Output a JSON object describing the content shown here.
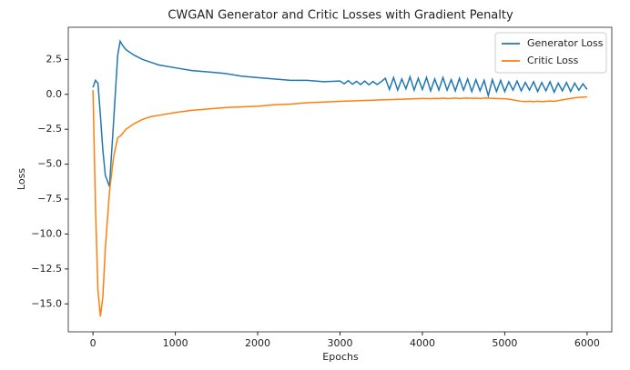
{
  "chart_data": {
    "type": "line",
    "title": "CWGAN Generator and Critic Losses with Gradient Penalty",
    "xlabel": "Epochs",
    "ylabel": "Loss",
    "x": [
      0,
      30,
      60,
      90,
      120,
      150,
      200,
      250,
      300,
      330,
      360,
      400,
      500,
      600,
      700,
      800,
      1000,
      1200,
      1400,
      1600,
      1800,
      2000,
      2200,
      2400,
      2600,
      2800,
      3000,
      3050,
      3100,
      3150,
      3200,
      3250,
      3300,
      3350,
      3400,
      3450,
      3500,
      3550,
      3600,
      3650,
      3700,
      3750,
      3800,
      3850,
      3900,
      3950,
      4000,
      4050,
      4100,
      4150,
      4200,
      4250,
      4300,
      4350,
      4400,
      4450,
      4500,
      4550,
      4600,
      4650,
      4700,
      4750,
      4800,
      4850,
      4900,
      4950,
      5000,
      5050,
      5100,
      5150,
      5200,
      5250,
      5300,
      5350,
      5400,
      5450,
      5500,
      5550,
      5600,
      5650,
      5700,
      5750,
      5800,
      5850,
      5900,
      5950,
      6000
    ],
    "series": [
      {
        "name": "Generator Loss",
        "color": "#1f77b4",
        "values": [
          0.5,
          1.0,
          0.8,
          -1.5,
          -4,
          -5.8,
          -6.6,
          -2,
          2.8,
          3.8,
          3.5,
          3.2,
          2.8,
          2.5,
          2.3,
          2.1,
          1.9,
          1.7,
          1.6,
          1.5,
          1.3,
          1.2,
          1.1,
          1.0,
          1.0,
          0.9,
          0.95,
          0.75,
          0.98,
          0.72,
          0.93,
          0.7,
          0.95,
          0.68,
          0.92,
          0.7,
          0.9,
          1.15,
          0.35,
          1.2,
          0.3,
          1.1,
          0.4,
          1.25,
          0.3,
          1.15,
          0.35,
          1.2,
          0.25,
          1.1,
          0.3,
          1.2,
          0.3,
          1.05,
          0.25,
          1.15,
          0.3,
          1.1,
          0.2,
          1.05,
          0.25,
          1.0,
          -0.1,
          1.05,
          0.2,
          1.0,
          0.2,
          0.9,
          0.3,
          0.95,
          0.25,
          0.85,
          0.3,
          0.9,
          0.2,
          0.85,
          0.25,
          0.9,
          0.15,
          0.8,
          0.25,
          0.85,
          0.2,
          0.8,
          0.3,
          0.75,
          0.35
        ]
      },
      {
        "name": "Critic Loss",
        "color": "#ff7f0e",
        "values": [
          0.3,
          -8,
          -14,
          -15.9,
          -14.5,
          -11,
          -7,
          -4.5,
          -3.1,
          -3.0,
          -2.8,
          -2.5,
          -2.1,
          -1.8,
          -1.6,
          -1.5,
          -1.3,
          -1.15,
          -1.05,
          -0.95,
          -0.9,
          -0.85,
          -0.75,
          -0.7,
          -0.6,
          -0.55,
          -0.5,
          -0.49,
          -0.48,
          -0.47,
          -0.46,
          -0.45,
          -0.44,
          -0.43,
          -0.42,
          -0.41,
          -0.4,
          -0.39,
          -0.38,
          -0.37,
          -0.36,
          -0.35,
          -0.34,
          -0.33,
          -0.32,
          -0.31,
          -0.3,
          -0.3,
          -0.31,
          -0.29,
          -0.3,
          -0.28,
          -0.3,
          -0.29,
          -0.27,
          -0.3,
          -0.28,
          -0.27,
          -0.29,
          -0.28,
          -0.3,
          -0.27,
          -0.28,
          -0.29,
          -0.3,
          -0.31,
          -0.32,
          -0.35,
          -0.4,
          -0.45,
          -0.5,
          -0.52,
          -0.5,
          -0.53,
          -0.5,
          -0.52,
          -0.5,
          -0.48,
          -0.5,
          -0.45,
          -0.4,
          -0.35,
          -0.3,
          -0.25,
          -0.22,
          -0.2,
          -0.18
        ]
      }
    ],
    "xlim": [
      -300,
      6300
    ],
    "ylim": [
      -17.0,
      4.8
    ],
    "xticks": [
      0,
      1000,
      2000,
      3000,
      4000,
      5000,
      6000
    ],
    "yticks": [
      2.5,
      {
        "value": 0,
        "label": "0.0"
      },
      {
        "value": -2.5,
        "label": "−2.5"
      },
      {
        "value": -5,
        "label": "−5.0"
      },
      {
        "value": -7.5,
        "label": "−7.5"
      },
      {
        "value": -10,
        "label": "−10.0"
      },
      {
        "value": -12.5,
        "label": "−12.5"
      },
      {
        "value": -15,
        "label": "−15.0"
      }
    ],
    "legend": "upper right"
  }
}
